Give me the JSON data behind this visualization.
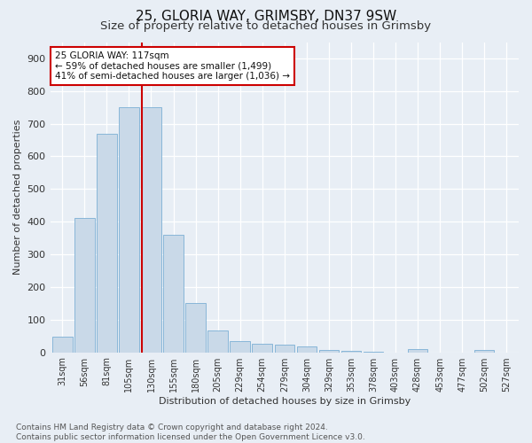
{
  "title_line1": "25, GLORIA WAY, GRIMSBY, DN37 9SW",
  "title_line2": "Size of property relative to detached houses in Grimsby",
  "xlabel": "Distribution of detached houses by size in Grimsby",
  "ylabel": "Number of detached properties",
  "footnote": "Contains HM Land Registry data © Crown copyright and database right 2024.\nContains public sector information licensed under the Open Government Licence v3.0.",
  "bar_labels": [
    "31sqm",
    "56sqm",
    "81sqm",
    "105sqm",
    "130sqm",
    "155sqm",
    "180sqm",
    "205sqm",
    "229sqm",
    "254sqm",
    "279sqm",
    "304sqm",
    "329sqm",
    "353sqm",
    "378sqm",
    "403sqm",
    "428sqm",
    "453sqm",
    "477sqm",
    "502sqm",
    "527sqm"
  ],
  "bar_values": [
    48,
    410,
    670,
    750,
    750,
    360,
    150,
    68,
    35,
    27,
    22,
    17,
    8,
    3,
    1,
    0,
    9,
    0,
    0,
    8,
    0
  ],
  "bar_color": "#c9d9e8",
  "bar_edge_color": "#7bafd4",
  "vline_x": 3.57,
  "vline_color": "#cc0000",
  "annotation_text": "25 GLORIA WAY: 117sqm\n← 59% of detached houses are smaller (1,499)\n41% of semi-detached houses are larger (1,036) →",
  "annotation_box_color": "#ffffff",
  "annotation_box_edge": "#cc0000",
  "ylim": [
    0,
    950
  ],
  "yticks": [
    0,
    100,
    200,
    300,
    400,
    500,
    600,
    700,
    800,
    900
  ],
  "bg_color": "#e8eef5",
  "plot_bg_color": "#e8eef5",
  "grid_color": "#ffffff",
  "title1_fontsize": 11,
  "title2_fontsize": 9.5,
  "footnote_fontsize": 6.5,
  "annot_fontsize": 7.5,
  "ylabel_fontsize": 8,
  "xlabel_fontsize": 8,
  "tick_fontsize": 7,
  "ytick_fontsize": 8
}
